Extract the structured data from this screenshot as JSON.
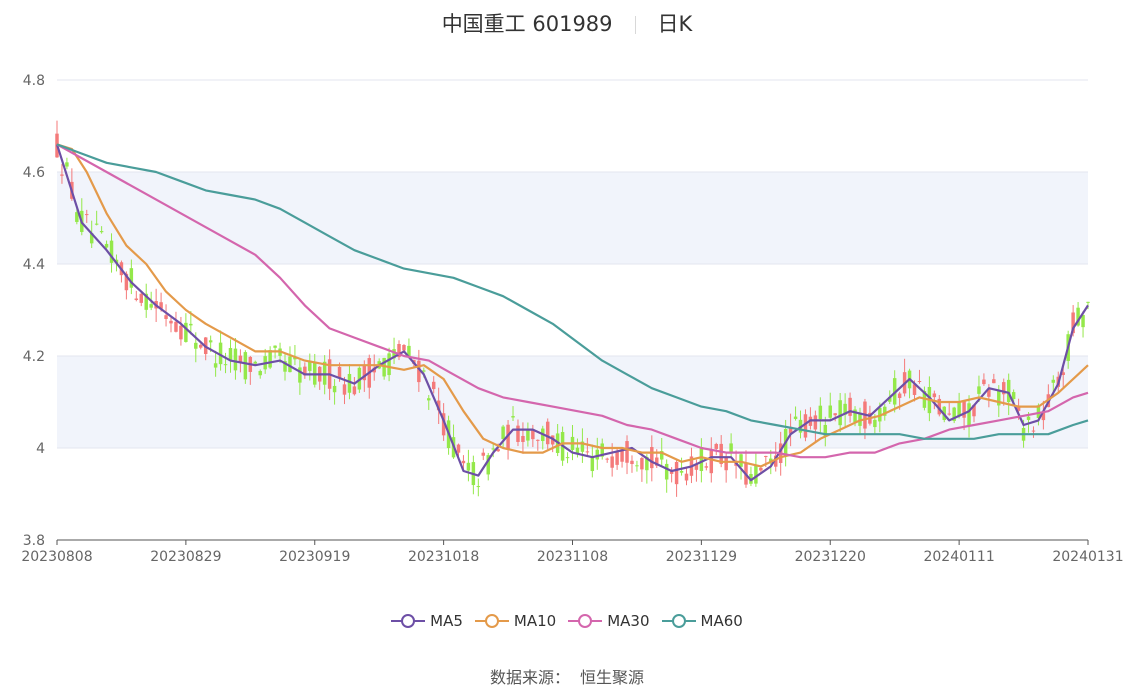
{
  "title": {
    "name": "中国重工 601989",
    "period": "日K"
  },
  "source": {
    "label": "数据来源：",
    "value": "恒生聚源"
  },
  "colors": {
    "up": "#f47a7a",
    "down": "#94e84a",
    "MA5": "#6d4fa6",
    "MA10": "#e49a4a",
    "MA30": "#d466ad",
    "MA60": "#4a9d9a",
    "band": "#f1f4fb",
    "grid": "#e3e6ef"
  },
  "chart_data": {
    "type": "candlestick",
    "ylim": [
      3.8,
      4.8
    ],
    "yticks": [
      "3.8",
      "4",
      "4.2",
      "4.4",
      "4.6",
      "4.8"
    ],
    "xticks": [
      "20230808",
      "20230829",
      "20230919",
      "20231018",
      "20231108",
      "20231129",
      "20231220",
      "20240111",
      "20240131"
    ],
    "grid": true,
    "legend_position": "bottom",
    "ma_series": [
      {
        "name": "MA5",
        "points": [
          [
            0,
            4.66
          ],
          [
            5,
            4.49
          ],
          [
            10,
            4.43
          ],
          [
            15,
            4.36
          ],
          [
            20,
            4.31
          ],
          [
            25,
            4.27
          ],
          [
            30,
            4.22
          ],
          [
            35,
            4.19
          ],
          [
            40,
            4.18
          ],
          [
            45,
            4.19
          ],
          [
            50,
            4.16
          ],
          [
            55,
            4.16
          ],
          [
            60,
            4.14
          ],
          [
            65,
            4.18
          ],
          [
            70,
            4.21
          ],
          [
            74,
            4.16
          ],
          [
            78,
            4.06
          ],
          [
            82,
            3.95
          ],
          [
            85,
            3.94
          ],
          [
            88,
            3.99
          ],
          [
            92,
            4.04
          ],
          [
            96,
            4.04
          ],
          [
            100,
            4.02
          ],
          [
            104,
            3.99
          ],
          [
            108,
            3.98
          ],
          [
            112,
            3.99
          ],
          [
            116,
            4.0
          ],
          [
            120,
            3.97
          ],
          [
            124,
            3.95
          ],
          [
            128,
            3.96
          ],
          [
            132,
            3.98
          ],
          [
            136,
            3.98
          ],
          [
            140,
            3.93
          ],
          [
            144,
            3.96
          ],
          [
            148,
            4.03
          ],
          [
            152,
            4.06
          ],
          [
            156,
            4.06
          ],
          [
            160,
            4.08
          ],
          [
            164,
            4.07
          ],
          [
            168,
            4.11
          ],
          [
            172,
            4.15
          ],
          [
            176,
            4.11
          ],
          [
            180,
            4.06
          ],
          [
            184,
            4.08
          ],
          [
            188,
            4.13
          ],
          [
            192,
            4.12
          ],
          [
            195,
            4.05
          ],
          [
            198,
            4.06
          ],
          [
            202,
            4.14
          ],
          [
            205,
            4.26
          ],
          [
            208,
            4.31
          ]
        ]
      },
      {
        "name": "MA10",
        "points": [
          [
            0,
            4.66
          ],
          [
            3,
            4.65
          ],
          [
            6,
            4.6
          ],
          [
            10,
            4.51
          ],
          [
            14,
            4.44
          ],
          [
            18,
            4.4
          ],
          [
            22,
            4.34
          ],
          [
            26,
            4.3
          ],
          [
            30,
            4.27
          ],
          [
            35,
            4.24
          ],
          [
            40,
            4.21
          ],
          [
            45,
            4.21
          ],
          [
            50,
            4.19
          ],
          [
            55,
            4.18
          ],
          [
            60,
            4.18
          ],
          [
            65,
            4.18
          ],
          [
            70,
            4.17
          ],
          [
            74,
            4.18
          ],
          [
            78,
            4.15
          ],
          [
            82,
            4.08
          ],
          [
            86,
            4.02
          ],
          [
            90,
            4.0
          ],
          [
            94,
            3.99
          ],
          [
            98,
            3.99
          ],
          [
            102,
            4.01
          ],
          [
            106,
            4.01
          ],
          [
            110,
            4.0
          ],
          [
            114,
            4.0
          ],
          [
            118,
            3.99
          ],
          [
            122,
            3.99
          ],
          [
            126,
            3.97
          ],
          [
            130,
            3.98
          ],
          [
            134,
            3.97
          ],
          [
            138,
            3.97
          ],
          [
            142,
            3.96
          ],
          [
            146,
            3.98
          ],
          [
            150,
            3.99
          ],
          [
            154,
            4.02
          ],
          [
            158,
            4.04
          ],
          [
            162,
            4.06
          ],
          [
            166,
            4.07
          ],
          [
            170,
            4.09
          ],
          [
            174,
            4.11
          ],
          [
            178,
            4.1
          ],
          [
            182,
            4.1
          ],
          [
            186,
            4.11
          ],
          [
            190,
            4.1
          ],
          [
            194,
            4.09
          ],
          [
            198,
            4.09
          ],
          [
            202,
            4.12
          ],
          [
            206,
            4.16
          ],
          [
            208,
            4.18
          ]
        ]
      },
      {
        "name": "MA30",
        "points": [
          [
            0,
            4.66
          ],
          [
            10,
            4.6
          ],
          [
            20,
            4.54
          ],
          [
            30,
            4.48
          ],
          [
            40,
            4.42
          ],
          [
            45,
            4.37
          ],
          [
            50,
            4.31
          ],
          [
            55,
            4.26
          ],
          [
            60,
            4.24
          ],
          [
            65,
            4.22
          ],
          [
            70,
            4.2
          ],
          [
            75,
            4.19
          ],
          [
            80,
            4.16
          ],
          [
            85,
            4.13
          ],
          [
            90,
            4.11
          ],
          [
            95,
            4.1
          ],
          [
            100,
            4.09
          ],
          [
            105,
            4.08
          ],
          [
            110,
            4.07
          ],
          [
            115,
            4.05
          ],
          [
            120,
            4.04
          ],
          [
            125,
            4.02
          ],
          [
            130,
            4.0
          ],
          [
            135,
            3.99
          ],
          [
            140,
            3.99
          ],
          [
            145,
            3.99
          ],
          [
            150,
            3.98
          ],
          [
            155,
            3.98
          ],
          [
            160,
            3.99
          ],
          [
            165,
            3.99
          ],
          [
            170,
            4.01
          ],
          [
            175,
            4.02
          ],
          [
            180,
            4.04
          ],
          [
            185,
            4.05
          ],
          [
            190,
            4.06
          ],
          [
            195,
            4.07
          ],
          [
            200,
            4.08
          ],
          [
            205,
            4.11
          ],
          [
            208,
            4.12
          ]
        ]
      },
      {
        "name": "MA60",
        "points": [
          [
            0,
            4.66
          ],
          [
            5,
            4.64
          ],
          [
            10,
            4.62
          ],
          [
            15,
            4.61
          ],
          [
            20,
            4.6
          ],
          [
            25,
            4.58
          ],
          [
            30,
            4.56
          ],
          [
            35,
            4.55
          ],
          [
            40,
            4.54
          ],
          [
            45,
            4.52
          ],
          [
            50,
            4.49
          ],
          [
            55,
            4.46
          ],
          [
            60,
            4.43
          ],
          [
            65,
            4.41
          ],
          [
            70,
            4.39
          ],
          [
            75,
            4.38
          ],
          [
            80,
            4.37
          ],
          [
            85,
            4.35
          ],
          [
            90,
            4.33
          ],
          [
            95,
            4.3
          ],
          [
            100,
            4.27
          ],
          [
            105,
            4.23
          ],
          [
            110,
            4.19
          ],
          [
            115,
            4.16
          ],
          [
            120,
            4.13
          ],
          [
            125,
            4.11
          ],
          [
            130,
            4.09
          ],
          [
            135,
            4.08
          ],
          [
            140,
            4.06
          ],
          [
            145,
            4.05
          ],
          [
            150,
            4.04
          ],
          [
            155,
            4.03
          ],
          [
            160,
            4.03
          ],
          [
            165,
            4.03
          ],
          [
            170,
            4.03
          ],
          [
            175,
            4.02
          ],
          [
            180,
            4.02
          ],
          [
            185,
            4.02
          ],
          [
            190,
            4.03
          ],
          [
            195,
            4.03
          ],
          [
            200,
            4.03
          ],
          [
            205,
            4.05
          ],
          [
            208,
            4.06
          ]
        ]
      }
    ]
  }
}
